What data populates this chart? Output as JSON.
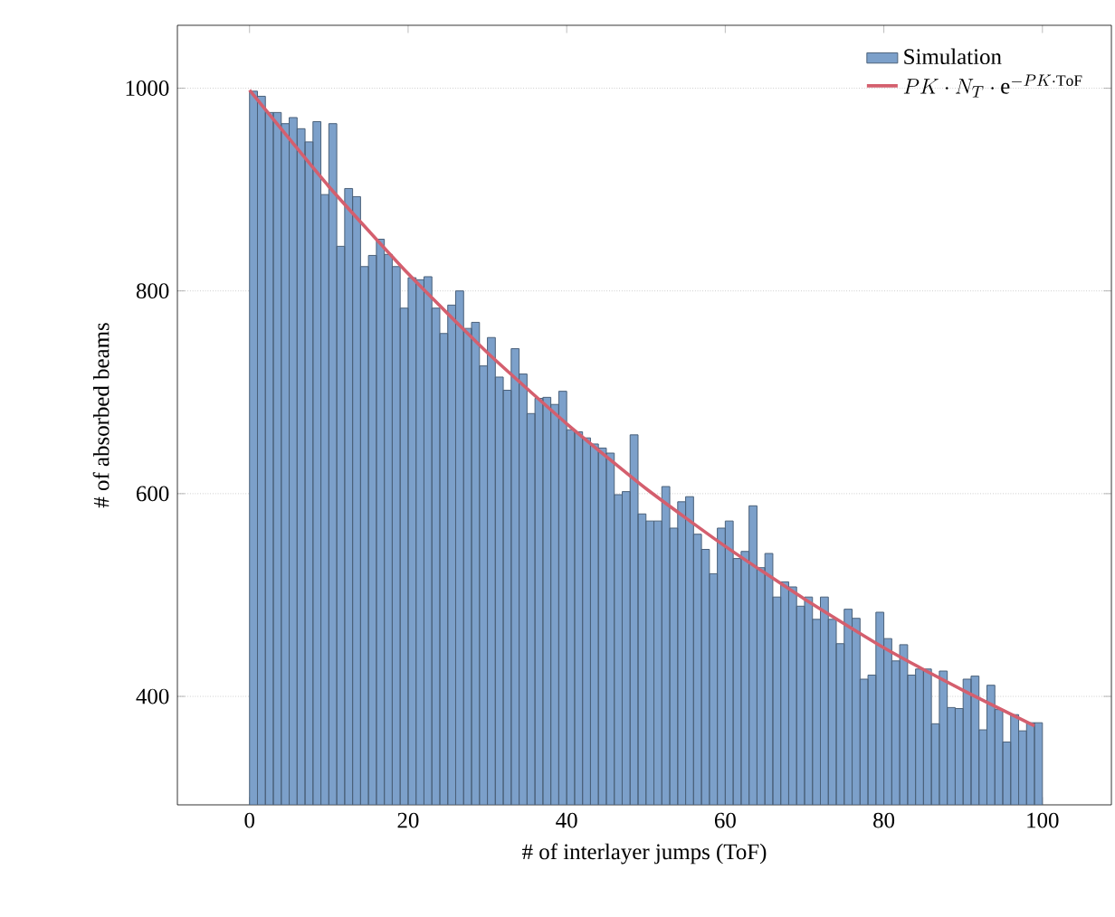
{
  "chart_data": {
    "type": "histogram",
    "xlabel": "# of interlayer jumps (ToF)",
    "ylabel": "# of absorbed beams",
    "bins": [
      0,
      1,
      2,
      3,
      4,
      5,
      6,
      7,
      8,
      9,
      10,
      11,
      12,
      13,
      14,
      15,
      16,
      17,
      18,
      19,
      20,
      21,
      22,
      23,
      24,
      25,
      26,
      27,
      28,
      29,
      30,
      31,
      32,
      33,
      34,
      35,
      36,
      37,
      38,
      39,
      40,
      41,
      42,
      43,
      44,
      45,
      46,
      47,
      48,
      49,
      50,
      51,
      52,
      53,
      54,
      55,
      56,
      57,
      58,
      59,
      60,
      61,
      62,
      63,
      64,
      65,
      66,
      67,
      68,
      69,
      70,
      71,
      72,
      73,
      74,
      75,
      76,
      77,
      78,
      79,
      80,
      81,
      82,
      83,
      84,
      85,
      86,
      87,
      88,
      89,
      90,
      91,
      92,
      93,
      94,
      95,
      96,
      97,
      98,
      99,
      100
    ],
    "series": [
      {
        "name": "Simulation",
        "color": "#7ca0ca",
        "values": [
          997,
          992,
          976,
          976,
          965,
          971,
          960,
          947,
          967,
          895,
          965,
          844,
          901,
          893,
          824,
          835,
          851,
          836,
          824,
          783,
          813,
          811,
          814,
          783,
          758,
          786,
          800,
          763,
          769,
          726,
          754,
          715,
          702,
          743,
          718,
          679,
          694,
          695,
          688,
          701,
          663,
          661,
          655,
          649,
          645,
          640,
          599,
          602,
          658,
          580,
          573,
          573,
          607,
          566,
          592,
          597,
          560,
          545,
          521,
          566,
          573,
          536,
          543,
          588,
          527,
          541,
          498,
          513,
          508,
          489,
          498,
          476,
          498,
          476,
          452,
          486,
          477,
          417,
          421,
          483,
          457,
          435,
          451,
          421,
          427,
          427,
          373,
          425,
          389,
          388,
          417,
          420,
          367,
          411,
          387,
          355,
          382,
          366,
          374,
          374
        ]
      },
      {
        "name": "PK \\cdot N_T \\cdot \\mathrm{e}^{-PK\\cdot\\mathrm{ToF}}",
        "type": "line",
        "color": "#d45f6e",
        "x": [
          0,
          10,
          20,
          30,
          40,
          50,
          60,
          70,
          80,
          90,
          99
        ],
        "values": [
          998,
          903,
          817,
          739,
          669,
          605,
          548,
          496,
          448,
          406,
          371
        ]
      }
    ],
    "xlim": [
      -9.1,
      108.7
    ],
    "ylim": [
      293,
      1062
    ],
    "xticks": [
      0,
      20,
      40,
      60,
      80,
      100
    ],
    "yticks": [
      400,
      600,
      800,
      1000
    ],
    "grid": "y",
    "legend": "top right"
  }
}
